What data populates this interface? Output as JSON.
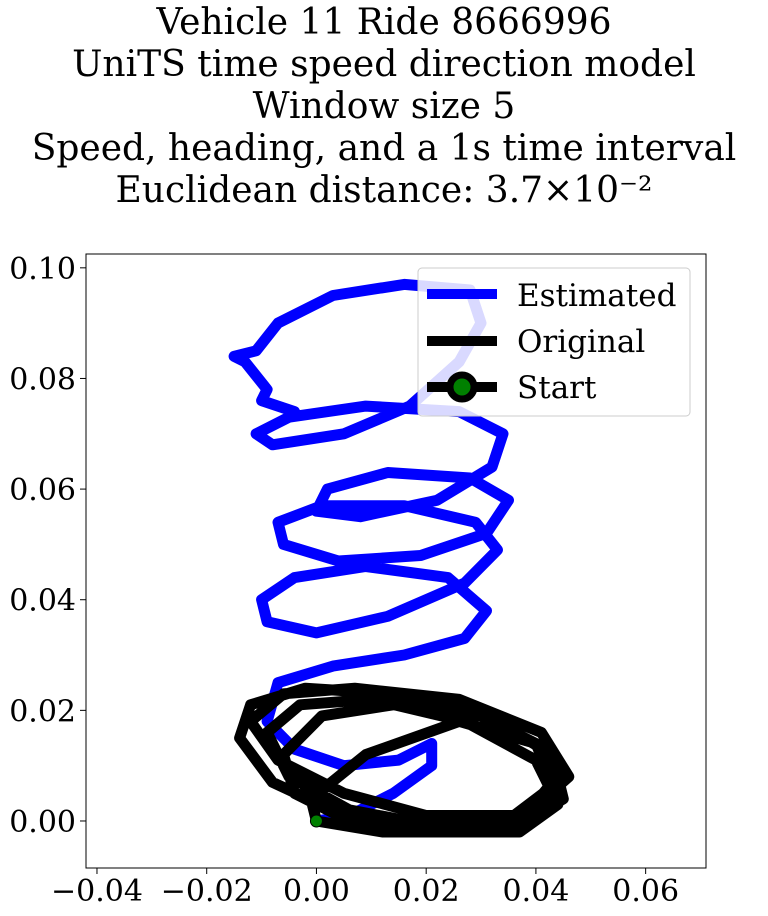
{
  "title_lines": [
    "Vehicle 11 Ride 8666996",
    "UniTS time speed direction model",
    "Window size 5",
    "Speed, heading, and a 1s time interval",
    "Euclidean distance: 3.7×10⁻²"
  ],
  "chart_data": {
    "type": "line",
    "title": "Vehicle 11 Ride 8666996 / UniTS time speed direction model / Window size 5 / Speed, heading, and a 1s time interval / Euclidean distance: 3.7×10⁻²",
    "xlabel": "",
    "ylabel": "",
    "xlim": [
      -0.042,
      0.071
    ],
    "ylim": [
      -0.0085,
      0.1025
    ],
    "xticks": [
      "−0.04",
      "−0.02",
      "0.00",
      "0.02",
      "0.04",
      "0.06"
    ],
    "xtick_values": [
      -0.04,
      -0.02,
      0.0,
      0.02,
      0.04,
      0.06
    ],
    "yticks": [
      "0.00",
      "0.02",
      "0.04",
      "0.06",
      "0.08",
      "0.10"
    ],
    "ytick_values": [
      0.0,
      0.02,
      0.04,
      0.06,
      0.08,
      0.1
    ],
    "grid": false,
    "legend": {
      "position": "top-right",
      "entries": [
        "Estimated",
        "Original",
        "Start"
      ]
    },
    "series": [
      {
        "name": "Estimated",
        "color": "#0000ff",
        "x": [
          0.0,
          0.006,
          0.014,
          0.021,
          0.021,
          0.015,
          0.005,
          -0.004,
          -0.009,
          -0.007,
          0.003,
          0.016,
          0.027,
          0.031,
          0.024,
          0.009,
          -0.004,
          -0.01,
          -0.009,
          0.0,
          0.013,
          0.027,
          0.033,
          0.029,
          0.016,
          0.001,
          -0.007,
          -0.006,
          0.004,
          0.019,
          0.031,
          0.035,
          0.028,
          0.013,
          0.002,
          0.0,
          0.008,
          0.022,
          0.032,
          0.034,
          0.026,
          0.009,
          -0.005,
          -0.011,
          -0.008,
          0.005,
          0.017,
          0.026,
          0.03,
          0.028,
          0.016,
          0.003,
          -0.007,
          -0.011,
          -0.015,
          -0.013,
          -0.009,
          -0.01,
          -0.004
        ],
        "y": [
          0.0,
          0.001,
          0.005,
          0.01,
          0.014,
          0.011,
          0.01,
          0.013,
          0.018,
          0.025,
          0.028,
          0.03,
          0.033,
          0.038,
          0.044,
          0.046,
          0.044,
          0.04,
          0.036,
          0.034,
          0.037,
          0.043,
          0.049,
          0.054,
          0.057,
          0.057,
          0.054,
          0.05,
          0.047,
          0.048,
          0.052,
          0.058,
          0.062,
          0.063,
          0.06,
          0.056,
          0.055,
          0.058,
          0.064,
          0.07,
          0.074,
          0.075,
          0.073,
          0.07,
          0.068,
          0.07,
          0.075,
          0.083,
          0.09,
          0.096,
          0.097,
          0.095,
          0.09,
          0.085,
          0.084,
          0.083,
          0.078,
          0.076,
          0.074
        ]
      },
      {
        "name": "Original",
        "color": "#000000",
        "x": [
          0.0,
          0.012,
          0.027,
          0.038,
          0.043,
          0.04,
          0.03,
          0.014,
          0.001,
          -0.006,
          -0.004,
          0.006,
          0.021,
          0.036,
          0.045,
          0.043,
          0.031,
          0.014,
          -0.002,
          -0.012,
          -0.014,
          -0.008,
          0.005,
          0.022,
          0.037,
          0.044,
          0.04,
          0.027,
          0.01,
          -0.003,
          -0.009,
          -0.005,
          0.006,
          0.022,
          0.038,
          0.046,
          0.041,
          0.026,
          0.007,
          -0.006,
          -0.012,
          -0.007,
          0.005,
          0.02,
          0.036,
          0.044,
          0.04,
          0.026,
          0.009,
          -0.001,
          0.0
        ],
        "y": [
          0.0,
          -0.002,
          -0.002,
          0.001,
          0.007,
          0.014,
          0.019,
          0.021,
          0.019,
          0.012,
          0.005,
          0.0,
          -0.002,
          -0.001,
          0.004,
          0.012,
          0.019,
          0.023,
          0.024,
          0.021,
          0.015,
          0.007,
          0.001,
          -0.002,
          -0.002,
          0.003,
          0.011,
          0.018,
          0.022,
          0.021,
          0.016,
          0.008,
          0.002,
          -0.001,
          0.001,
          0.008,
          0.016,
          0.022,
          0.024,
          0.023,
          0.018,
          0.011,
          0.005,
          0.001,
          0.001,
          0.007,
          0.014,
          0.018,
          0.012,
          0.004,
          0.0
        ]
      }
    ],
    "start_point": {
      "label": "Start",
      "x": 0.0,
      "y": 0.0,
      "color": "#008000",
      "edge_color": "#000000"
    }
  }
}
